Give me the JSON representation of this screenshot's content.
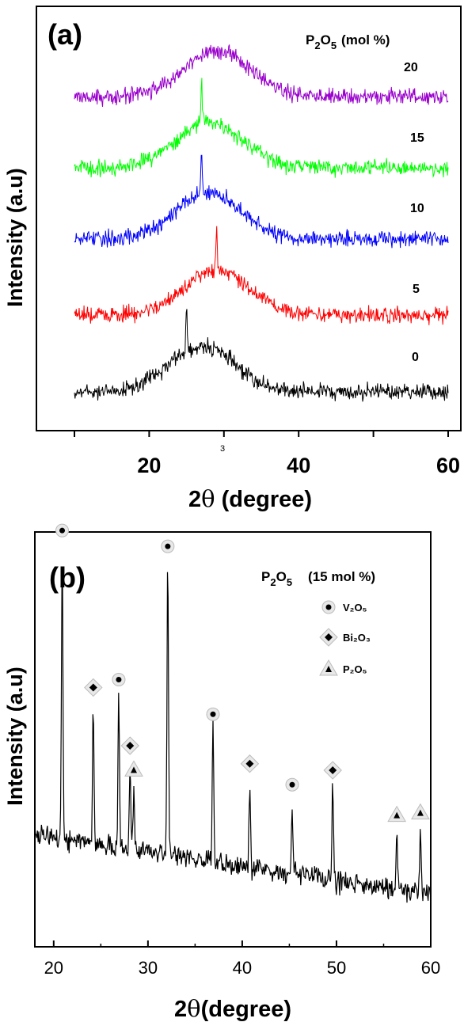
{
  "panel_a": {
    "label": "(a)",
    "legend_title_main": "P",
    "legend_title_sub1": "2",
    "legend_title_o": "O",
    "legend_title_sub2": "5",
    "legend_title_unit": "(mol %)",
    "ylabel": "Intensity  (a.u)",
    "xlabel_main": "2",
    "xlabel_theta": "θ",
    "xlabel_unit": " (degree)",
    "stray_mark": "3",
    "ticks": [
      "20",
      "40",
      "60"
    ]
  },
  "panel_b": {
    "label": "(b)",
    "legend_title_main": "P",
    "legend_title_sub1": "2",
    "legend_title_o": "O",
    "legend_title_sub2": "5",
    "legend_title_unit": "(15 mol %)",
    "ylabel": "Intensity  (a.u)",
    "xlabel_main": "2",
    "xlabel_theta": "θ",
    "xlabel_unit": "(degree)",
    "ticks": [
      "20",
      "30",
      "40",
      "50",
      "60"
    ],
    "legend": [
      {
        "marker": "circle",
        "text": "V₂O₅"
      },
      {
        "marker": "diamond",
        "text": "Bi₂O₃"
      },
      {
        "marker": "triangle",
        "text": "P₂O₅"
      }
    ]
  },
  "chart_data": [
    {
      "type": "line",
      "title": "(a)",
      "xlabel": "2θ (degree)",
      "ylabel": "Intensity  (a.u)",
      "xlim": [
        10,
        60
      ],
      "x_ticks": [
        20,
        40,
        60
      ],
      "grid": false,
      "series": [
        {
          "name": "0",
          "color": "#000000",
          "broad_peak_center": 27,
          "sharp_peak": 25
        },
        {
          "name": "5",
          "color": "#ff0000",
          "broad_peak_center": 29,
          "sharp_peak": 29
        },
        {
          "name": "10",
          "color": "#0000ff",
          "broad_peak_center": 28,
          "sharp_peak": 27
        },
        {
          "name": "15",
          "color": "#00ff00",
          "broad_peak_center": 28,
          "sharp_peak": 27
        },
        {
          "name": "20",
          "color": "#9900cc",
          "broad_peak_center": 29,
          "sharp_peak": null
        }
      ]
    },
    {
      "type": "line",
      "title": "(b)",
      "xlabel": "2θ(degree)",
      "ylabel": "Intensity  (a.u)",
      "xlim": [
        18,
        60
      ],
      "x_ticks": [
        20,
        30,
        40,
        50,
        60
      ],
      "grid": false,
      "series": [
        {
          "name": "P2O5 (15 mol %)",
          "color": "#000000",
          "peaks": [
            {
              "x": 20.9,
              "height": 1.0,
              "phase": "V2O5"
            },
            {
              "x": 24.2,
              "height": 0.48,
              "phase": "Bi2O3"
            },
            {
              "x": 26.9,
              "height": 0.52,
              "phase": "V2O5"
            },
            {
              "x": 28.1,
              "height": 0.3,
              "phase": "Bi2O3"
            },
            {
              "x": 28.5,
              "height": 0.22,
              "phase": "P2O5"
            },
            {
              "x": 32.1,
              "height": 1.0,
              "phase": "V2O5"
            },
            {
              "x": 36.9,
              "height": 0.45,
              "phase": "V2O5"
            },
            {
              "x": 40.8,
              "height": 0.3,
              "phase": "Bi2O3"
            },
            {
              "x": 45.3,
              "height": 0.25,
              "phase": "V2O5"
            },
            {
              "x": 49.6,
              "height": 0.32,
              "phase": "Bi2O3"
            },
            {
              "x": 56.4,
              "height": 0.2,
              "phase": "P2O5"
            },
            {
              "x": 58.9,
              "height": 0.22,
              "phase": "P2O5"
            }
          ]
        }
      ]
    }
  ]
}
